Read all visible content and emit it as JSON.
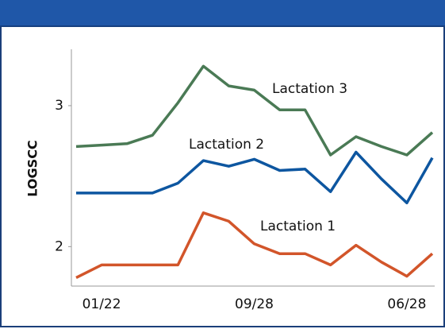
{
  "chart_data": {
    "type": "line",
    "y_label": "LOGSCC",
    "categories": [
      null,
      "01/22",
      null,
      null,
      null,
      null,
      null,
      "09/28",
      null,
      null,
      null,
      null,
      null,
      "06/28",
      null
    ],
    "ylim": [
      1.72,
      3.4
    ],
    "yticks": [
      2,
      3
    ],
    "series": [
      {
        "name": "Lactation 3",
        "color": "#4a7a55",
        "values": [
          2.71,
          2.72,
          2.73,
          2.79,
          3.02,
          3.28,
          3.14,
          3.11,
          2.97,
          2.97,
          2.65,
          2.78,
          2.71,
          2.65,
          2.81
        ]
      },
      {
        "name": "Lactation 2",
        "color": "#0d56a0",
        "values": [
          2.38,
          2.38,
          2.38,
          2.38,
          2.45,
          2.61,
          2.57,
          2.62,
          2.54,
          2.55,
          2.39,
          2.67,
          2.48,
          2.31,
          2.63
        ]
      },
      {
        "name": "Lactation 1",
        "color": "#d2552a",
        "values": [
          1.78,
          1.87,
          1.87,
          1.87,
          1.87,
          2.24,
          2.18,
          2.02,
          1.95,
          1.95,
          1.87,
          2.01,
          1.89,
          1.79,
          1.95
        ]
      }
    ]
  }
}
